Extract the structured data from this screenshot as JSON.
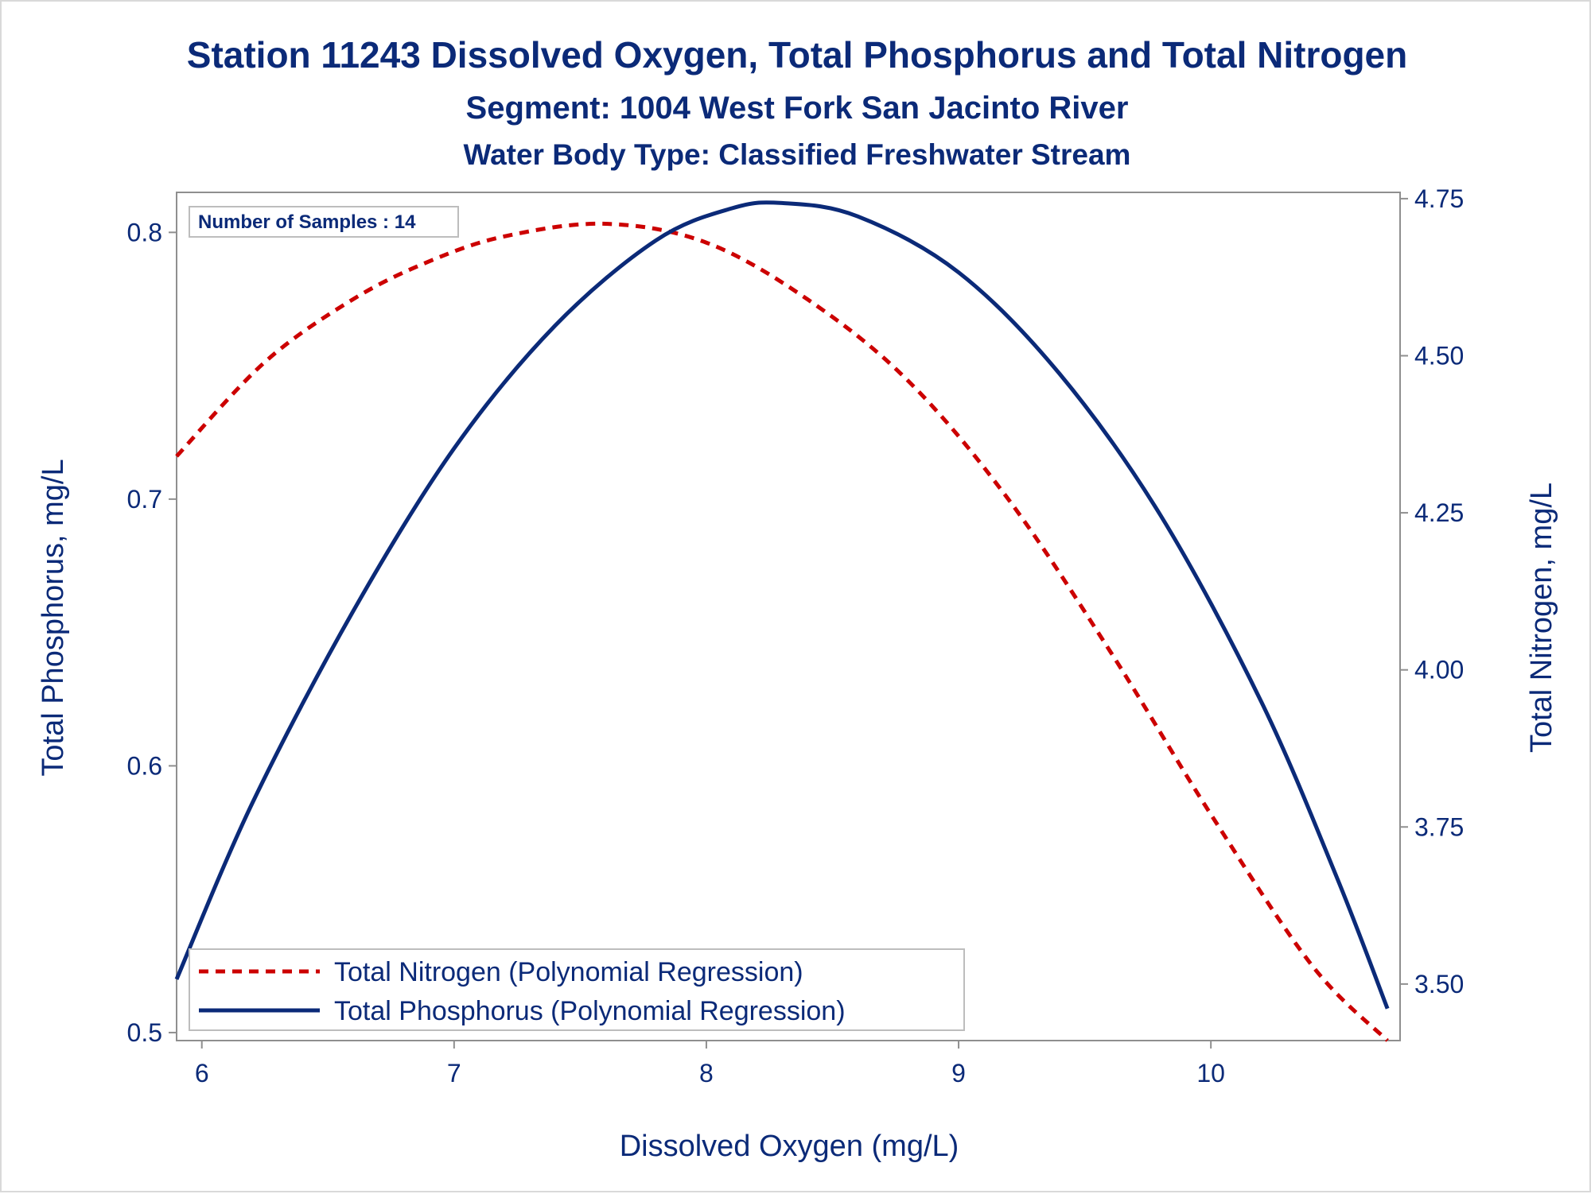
{
  "chart_data": {
    "type": "line",
    "title": "Station 11243  Dissolved Oxygen, Total Phosphorus and Total Nitrogen",
    "subtitle": "Segment: 1004  West Fork San Jacinto River",
    "subtitle2": "Water Body Type: Classified Freshwater Stream",
    "xlabel": "Dissolved Oxygen (mg/L)",
    "ylabel_left": "Total Phosphorus, mg/L",
    "ylabel_right": "Total Nitrogen, mg/L",
    "xlim": [
      5.9,
      10.75
    ],
    "ylim_left": [
      0.497,
      0.815
    ],
    "ylim_right": [
      3.41,
      4.76
    ],
    "x_ticks": [
      "6",
      "7",
      "8",
      "9",
      "10"
    ],
    "y_left_ticks": [
      "0.5",
      "0.6",
      "0.7",
      "0.8"
    ],
    "y_right_ticks": [
      "3.50",
      "3.75",
      "4.00",
      "4.25",
      "4.50",
      "4.75"
    ],
    "grid": false,
    "legend_position": "bottom-left",
    "inset_text": "Number of Samples : 14",
    "series": [
      {
        "name": "Total Nitrogen (Polynomial Regression)",
        "axis": "right",
        "style": "dashed",
        "color": "#cc0000",
        "x": [
          5.9,
          6.25,
          6.6,
          6.9,
          7.2,
          7.6,
          8.0,
          8.4,
          8.8,
          9.2,
          9.6,
          10.0,
          10.4,
          10.7
        ],
        "values": [
          4.34,
          4.49,
          4.59,
          4.65,
          4.69,
          4.71,
          4.68,
          4.59,
          4.46,
          4.27,
          4.03,
          3.77,
          3.53,
          3.41
        ]
      },
      {
        "name": "Total Phosphorus (Polynomial Regression)",
        "axis": "left",
        "style": "solid",
        "color": "#0b2a78",
        "x": [
          5.9,
          6.2,
          6.6,
          7.0,
          7.4,
          7.8,
          8.1,
          8.3,
          8.6,
          9.0,
          9.4,
          9.8,
          10.2,
          10.5,
          10.7
        ],
        "values": [
          0.52,
          0.586,
          0.658,
          0.719,
          0.765,
          0.797,
          0.809,
          0.811,
          0.806,
          0.785,
          0.747,
          0.694,
          0.624,
          0.558,
          0.509
        ]
      }
    ]
  }
}
